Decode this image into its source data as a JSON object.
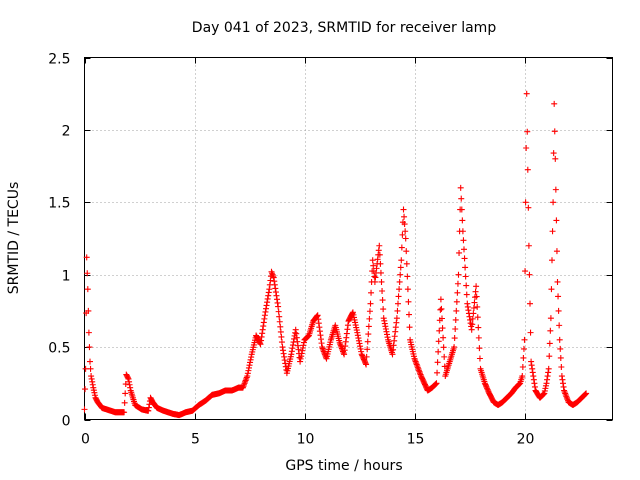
{
  "chart_data": {
    "type": "scatter",
    "title": "Day 041 of 2023, SRMTID for receiver lamp",
    "xlabel": "GPS time / hours",
    "ylabel": "SRMTID / TECUs",
    "xlim": [
      0,
      24
    ],
    "ylim": [
      0,
      2.5
    ],
    "xticks": [
      0,
      5,
      10,
      15,
      20
    ],
    "xtick_labels": [
      "0",
      "5",
      "10",
      "15",
      "20"
    ],
    "yticks": [
      0,
      0.5,
      1,
      1.5,
      2,
      2.5
    ],
    "ytick_labels": [
      "0",
      "0.5",
      "1",
      "1.5",
      "2",
      "2.5"
    ],
    "grid": true,
    "marker": "plus",
    "series": [
      {
        "name": "SRMTID",
        "color": "#ff0000",
        "x": [
          0.0,
          0.05,
          0.1,
          0.15,
          0.2,
          0.25,
          0.3,
          0.35,
          0.4,
          0.5,
          0.6,
          0.7,
          0.8,
          1.0,
          1.2,
          1.4,
          1.6,
          1.8,
          1.9,
          2.0,
          2.1,
          2.3,
          2.6,
          2.9,
          3.0,
          3.1,
          3.3,
          3.6,
          4.0,
          4.3,
          4.6,
          4.9,
          5.2,
          5.5,
          5.8,
          6.1,
          6.4,
          6.7,
          7.0,
          7.2,
          7.4,
          7.6,
          7.8,
          8.0,
          8.2,
          8.4,
          8.5,
          8.6,
          8.8,
          9.0,
          9.2,
          9.4,
          9.6,
          9.8,
          10.0,
          10.2,
          10.4,
          10.6,
          10.8,
          11.0,
          11.2,
          11.4,
          11.6,
          11.8,
          12.0,
          12.2,
          12.4,
          12.6,
          12.8,
          13.0,
          13.1,
          13.2,
          13.4,
          13.6,
          13.8,
          14.0,
          14.2,
          14.4,
          14.5,
          14.6,
          14.8,
          15.0,
          15.3,
          15.6,
          15.8,
          16.0,
          16.2,
          16.4,
          16.6,
          16.8,
          17.0,
          17.1,
          17.2,
          17.4,
          17.6,
          17.8,
          18.0,
          18.2,
          18.4,
          18.6,
          18.8,
          19.0,
          19.2,
          19.4,
          19.6,
          19.8,
          19.9,
          20.0,
          20.05,
          20.1,
          20.2,
          20.3,
          20.5,
          20.7,
          20.9,
          21.0,
          21.1,
          21.2,
          21.3,
          21.35,
          21.4,
          21.5,
          21.6,
          21.7,
          21.8,
          22.0,
          22.2,
          22.4,
          22.6,
          22.8
        ],
        "y": [
          0.07,
          0.35,
          1.12,
          0.9,
          0.6,
          0.4,
          0.3,
          0.26,
          0.22,
          0.15,
          0.12,
          0.1,
          0.08,
          0.07,
          0.06,
          0.05,
          0.05,
          0.05,
          0.31,
          0.28,
          0.2,
          0.1,
          0.07,
          0.06,
          0.15,
          0.12,
          0.08,
          0.06,
          0.04,
          0.03,
          0.05,
          0.06,
          0.1,
          0.13,
          0.17,
          0.18,
          0.2,
          0.2,
          0.22,
          0.22,
          0.3,
          0.45,
          0.58,
          0.52,
          0.72,
          0.9,
          1.02,
          0.98,
          0.78,
          0.5,
          0.32,
          0.45,
          0.62,
          0.4,
          0.55,
          0.58,
          0.68,
          0.72,
          0.5,
          0.42,
          0.55,
          0.65,
          0.53,
          0.45,
          0.68,
          0.74,
          0.6,
          0.45,
          0.38,
          0.8,
          1.1,
          0.95,
          1.2,
          0.7,
          0.55,
          0.45,
          0.7,
          1.1,
          1.45,
          1.25,
          0.55,
          0.42,
          0.3,
          0.2,
          0.22,
          0.25,
          0.83,
          0.3,
          0.4,
          0.5,
          1.0,
          1.6,
          1.3,
          0.8,
          0.62,
          0.92,
          0.35,
          0.25,
          0.18,
          0.12,
          0.1,
          0.12,
          0.15,
          0.18,
          0.22,
          0.25,
          0.3,
          0.55,
          1.5,
          2.25,
          1.2,
          0.4,
          0.2,
          0.15,
          0.18,
          0.25,
          0.35,
          0.7,
          1.5,
          2.18,
          1.8,
          0.95,
          0.55,
          0.3,
          0.2,
          0.12,
          0.1,
          0.12,
          0.15,
          0.18
        ]
      }
    ]
  }
}
